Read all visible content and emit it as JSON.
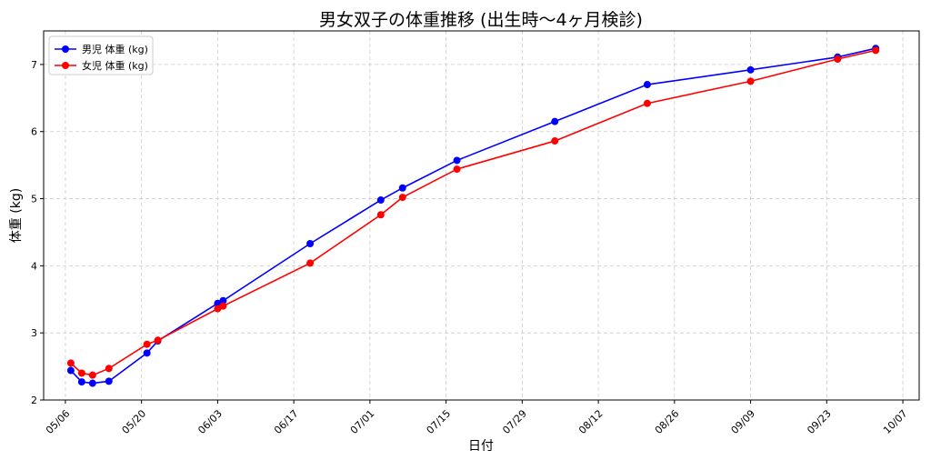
{
  "chart_data": {
    "type": "line",
    "title": "男女双子の体重推移 (出生時〜4ヶ月検診)",
    "xlabel": "日付",
    "ylabel": "体重 (kg)",
    "xlim": [
      "2024-05-02",
      "2024-10-10"
    ],
    "ylim": [
      2,
      7.5
    ],
    "grid": true,
    "legend_position": "top-left",
    "x_ticks": [
      "2024-05-06",
      "2024-05-20",
      "2024-06-03",
      "2024-06-17",
      "2024-07-01",
      "2024-07-15",
      "2024-07-29",
      "2024-08-12",
      "2024-08-26",
      "2024-09-09",
      "2024-09-23",
      "2024-10-07"
    ],
    "x_tick_labels": [
      "05/06",
      "05/20",
      "06/03",
      "06/17",
      "07/01",
      "07/15",
      "07/29",
      "08/12",
      "08/26",
      "09/09",
      "09/23",
      "10/07"
    ],
    "y_ticks": [
      2,
      3,
      4,
      5,
      6,
      7
    ],
    "y_tick_labels": [
      "2",
      "3",
      "4",
      "5",
      "6",
      "7"
    ],
    "series": [
      {
        "name": "男児 体重 (kg)",
        "color": "#0000ff",
        "x": [
          "2024-05-07",
          "2024-05-09",
          "2024-05-11",
          "2024-05-14",
          "2024-05-21",
          "2024-05-23",
          "2024-06-03",
          "2024-06-04",
          "2024-06-20",
          "2024-07-03",
          "2024-07-07",
          "2024-07-17",
          "2024-08-04",
          "2024-08-21",
          "2024-09-09",
          "2024-09-25",
          "2024-10-02"
        ],
        "values": [
          2.44,
          2.27,
          2.25,
          2.28,
          2.7,
          2.88,
          3.44,
          3.48,
          4.33,
          4.98,
          5.16,
          5.57,
          6.15,
          6.7,
          6.92,
          7.11,
          7.24
        ]
      },
      {
        "name": "女児 体重 (kg)",
        "color": "#ff0000",
        "x": [
          "2024-05-07",
          "2024-05-09",
          "2024-05-11",
          "2024-05-14",
          "2024-05-21",
          "2024-05-23",
          "2024-06-03",
          "2024-06-04",
          "2024-06-20",
          "2024-07-03",
          "2024-07-07",
          "2024-07-17",
          "2024-08-04",
          "2024-08-21",
          "2024-09-09",
          "2024-09-25",
          "2024-10-02"
        ],
        "values": [
          2.55,
          2.4,
          2.37,
          2.47,
          2.83,
          2.89,
          3.36,
          3.4,
          4.04,
          4.76,
          5.02,
          5.44,
          5.86,
          6.42,
          6.75,
          7.08,
          7.21
        ]
      }
    ]
  }
}
